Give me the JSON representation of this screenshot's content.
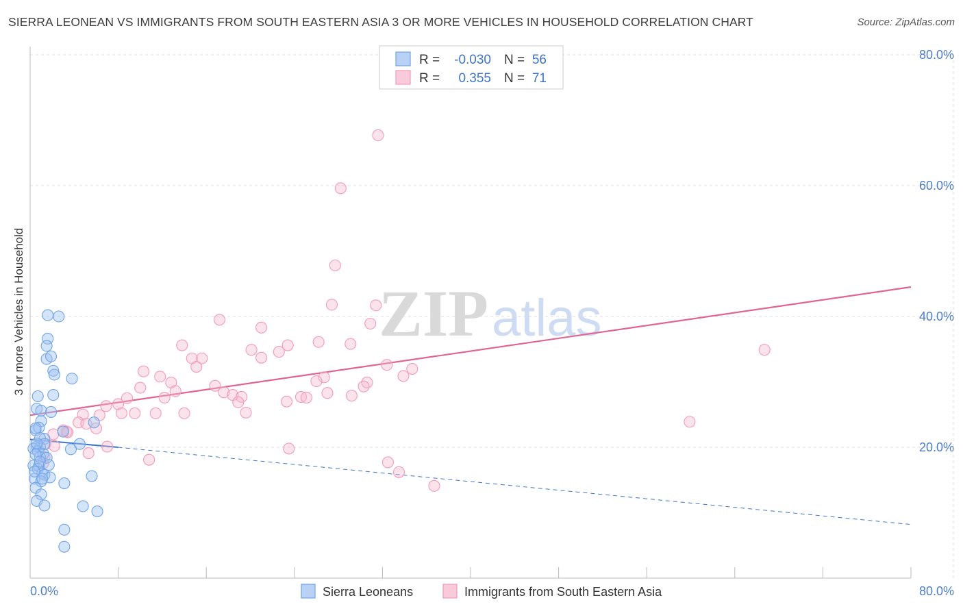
{
  "title": "SIERRA LEONEAN VS IMMIGRANTS FROM SOUTH EASTERN ASIA 3 OR MORE VEHICLES IN HOUSEHOLD CORRELATION CHART",
  "source": "Source: ZipAtlas.com",
  "watermark": {
    "zip": "ZIP",
    "atlas": "atlas"
  },
  "legend": {
    "r_label": "R =",
    "n_label": "N =",
    "rows": [
      {
        "r": "-0.030",
        "n": "56"
      },
      {
        "r": "0.355",
        "n": "71"
      }
    ]
  },
  "bottom_legend": [
    "Sierra Leoneans",
    "Immigrants from South Eastern Asia"
  ],
  "colors": {
    "blue": "#6fa3e8",
    "pink": "#f29ab8",
    "blue_line": "#3b74c9",
    "pink_line": "#e06493",
    "axis_text": "#4a7cc7"
  },
  "chart_data": {
    "type": "scatter",
    "title": "SIERRA LEONEAN VS IMMIGRANTS FROM SOUTH EASTERN ASIA 3 OR MORE VEHICLES IN HOUSEHOLD CORRELATION CHART",
    "xlabel": "",
    "ylabel": "3 or more Vehicles in Household",
    "xlim": [
      0,
      80
    ],
    "ylim": [
      0,
      80
    ],
    "x_tick_labels": [
      "0.0%",
      "80.0%"
    ],
    "y_tick_labels": [
      "20.0%",
      "40.0%",
      "60.0%",
      "80.0%"
    ],
    "y_ticks": [
      20,
      40,
      60,
      80
    ],
    "grid": true,
    "legend_position": "top-center",
    "series": [
      {
        "name": "Sierra Leoneans",
        "color": "#6fa3e8",
        "trend": {
          "x0": 0,
          "y0": 21.2,
          "x1": 8,
          "y1": 20.0,
          "dashed_to_x": 80,
          "dashed_to_y": 8.2
        },
        "points": [
          [
            1.6,
            40.2
          ],
          [
            2.6,
            40.0
          ],
          [
            1.6,
            36.6
          ],
          [
            1.5,
            35.5
          ],
          [
            1.5,
            33.5
          ],
          [
            1.9,
            33.9
          ],
          [
            2.1,
            31.7
          ],
          [
            2.2,
            31.1
          ],
          [
            3.8,
            30.5
          ],
          [
            0.7,
            27.8
          ],
          [
            2.1,
            28.0
          ],
          [
            0.6,
            25.9
          ],
          [
            1.0,
            25.6
          ],
          [
            1.9,
            25.4
          ],
          [
            1.0,
            24.0
          ],
          [
            5.8,
            23.8
          ],
          [
            0.5,
            22.6
          ],
          [
            0.8,
            23.0
          ],
          [
            3.0,
            22.4
          ],
          [
            1.3,
            21.3
          ],
          [
            4.5,
            20.5
          ],
          [
            0.6,
            20.1
          ],
          [
            0.9,
            20.0
          ],
          [
            0.3,
            19.8
          ],
          [
            0.7,
            19.4
          ],
          [
            1.2,
            19.0
          ],
          [
            3.7,
            19.7
          ],
          [
            0.9,
            18.5
          ],
          [
            1.5,
            18.4
          ],
          [
            0.3,
            17.2
          ],
          [
            0.8,
            17.1
          ],
          [
            0.7,
            16.7
          ],
          [
            1.1,
            16.0
          ],
          [
            1.3,
            15.8
          ],
          [
            1.8,
            15.4
          ],
          [
            0.4,
            15.2
          ],
          [
            5.6,
            15.6
          ],
          [
            1.0,
            14.8
          ],
          [
            0.5,
            13.8
          ],
          [
            1.0,
            12.8
          ],
          [
            3.1,
            14.5
          ],
          [
            0.6,
            11.8
          ],
          [
            1.3,
            11.1
          ],
          [
            4.8,
            11.0
          ],
          [
            6.1,
            10.2
          ],
          [
            3.1,
            7.4
          ],
          [
            3.1,
            4.8
          ],
          [
            0.5,
            22.9
          ],
          [
            0.9,
            21.4
          ],
          [
            1.3,
            20.5
          ],
          [
            0.5,
            18.9
          ],
          [
            0.9,
            17.8
          ],
          [
            1.7,
            17.3
          ],
          [
            0.4,
            16.3
          ],
          [
            1.1,
            15.2
          ],
          [
            0.6,
            20.6
          ]
        ]
      },
      {
        "name": "Immigrants from South Eastern Asia",
        "color": "#f29ab8",
        "trend": {
          "x0": 0,
          "y0": 24.9,
          "x1": 80,
          "y1": 44.5
        },
        "points": [
          [
            31.6,
            67.7
          ],
          [
            28.2,
            59.6
          ],
          [
            27.7,
            47.8
          ],
          [
            27.4,
            41.8
          ],
          [
            31.4,
            41.7
          ],
          [
            17.2,
            39.5
          ],
          [
            21.0,
            38.3
          ],
          [
            30.9,
            38.9
          ],
          [
            26.2,
            36.1
          ],
          [
            29.1,
            35.8
          ],
          [
            13.8,
            35.6
          ],
          [
            23.4,
            35.6
          ],
          [
            20.1,
            34.9
          ],
          [
            22.6,
            34.6
          ],
          [
            14.7,
            33.6
          ],
          [
            15.6,
            33.6
          ],
          [
            21.0,
            33.7
          ],
          [
            32.4,
            32.6
          ],
          [
            15.1,
            32.3
          ],
          [
            10.3,
            31.6
          ],
          [
            34.7,
            32.0
          ],
          [
            11.8,
            30.8
          ],
          [
            26.7,
            30.7
          ],
          [
            33.9,
            30.9
          ],
          [
            12.8,
            29.9
          ],
          [
            26.0,
            30.1
          ],
          [
            30.6,
            29.9
          ],
          [
            16.8,
            29.4
          ],
          [
            10.0,
            29.1
          ],
          [
            13.2,
            28.6
          ],
          [
            30.3,
            29.3
          ],
          [
            17.6,
            28.4
          ],
          [
            27.0,
            28.3
          ],
          [
            18.4,
            28.0
          ],
          [
            24.6,
            27.7
          ],
          [
            19.2,
            27.7
          ],
          [
            12.2,
            27.6
          ],
          [
            29.2,
            27.9
          ],
          [
            8.8,
            27.5
          ],
          [
            25.1,
            27.6
          ],
          [
            23.3,
            27.0
          ],
          [
            18.9,
            26.9
          ],
          [
            8.0,
            26.6
          ],
          [
            6.9,
            26.3
          ],
          [
            19.6,
            25.3
          ],
          [
            14.0,
            25.2
          ],
          [
            11.4,
            25.2
          ],
          [
            9.5,
            25.2
          ],
          [
            8.3,
            25.2
          ],
          [
            4.8,
            25.0
          ],
          [
            6.3,
            24.9
          ],
          [
            4.4,
            23.8
          ],
          [
            5.1,
            23.6
          ],
          [
            6.0,
            22.9
          ],
          [
            3.3,
            22.4
          ],
          [
            3.4,
            22.3
          ],
          [
            2.1,
            22.0
          ],
          [
            1.4,
            20.5
          ],
          [
            2.2,
            20.2
          ],
          [
            7.0,
            20.1
          ],
          [
            23.5,
            19.8
          ],
          [
            5.3,
            19.1
          ],
          [
            1.3,
            18.5
          ],
          [
            10.8,
            18.1
          ],
          [
            1.2,
            17.6
          ],
          [
            32.5,
            17.7
          ],
          [
            33.5,
            16.2
          ],
          [
            36.7,
            14.1
          ],
          [
            59.9,
            23.9
          ],
          [
            66.7,
            34.9
          ],
          [
            3.0,
            22.6
          ]
        ]
      }
    ]
  }
}
